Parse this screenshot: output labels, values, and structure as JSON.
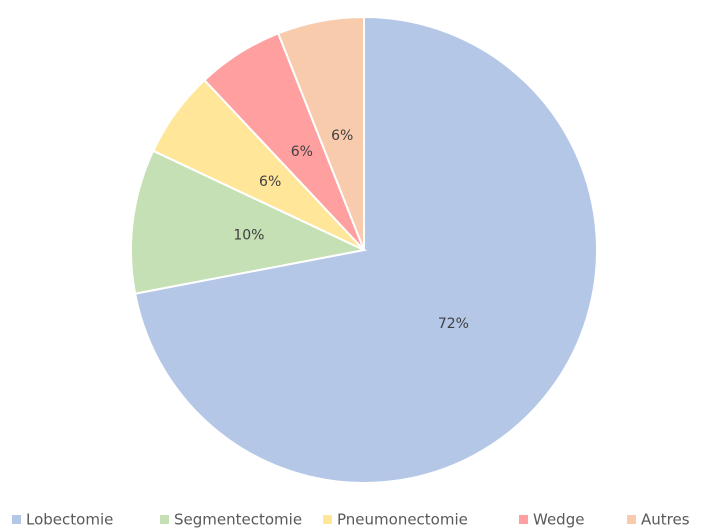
{
  "chart_data": {
    "type": "pie",
    "categories": [
      "Lobectomie",
      "Segmentectomie",
      "Pneumonectomie",
      "Wedge",
      "Autres"
    ],
    "values": [
      72,
      10,
      6,
      6,
      6
    ],
    "value_labels": [
      "72%",
      "10%",
      "6%",
      "6%",
      "6%"
    ],
    "colors": [
      "#b4c7e7",
      "#c5e0b4",
      "#ffe699",
      "#ff9f9f",
      "#f8cbad"
    ],
    "legend": "bottom"
  }
}
